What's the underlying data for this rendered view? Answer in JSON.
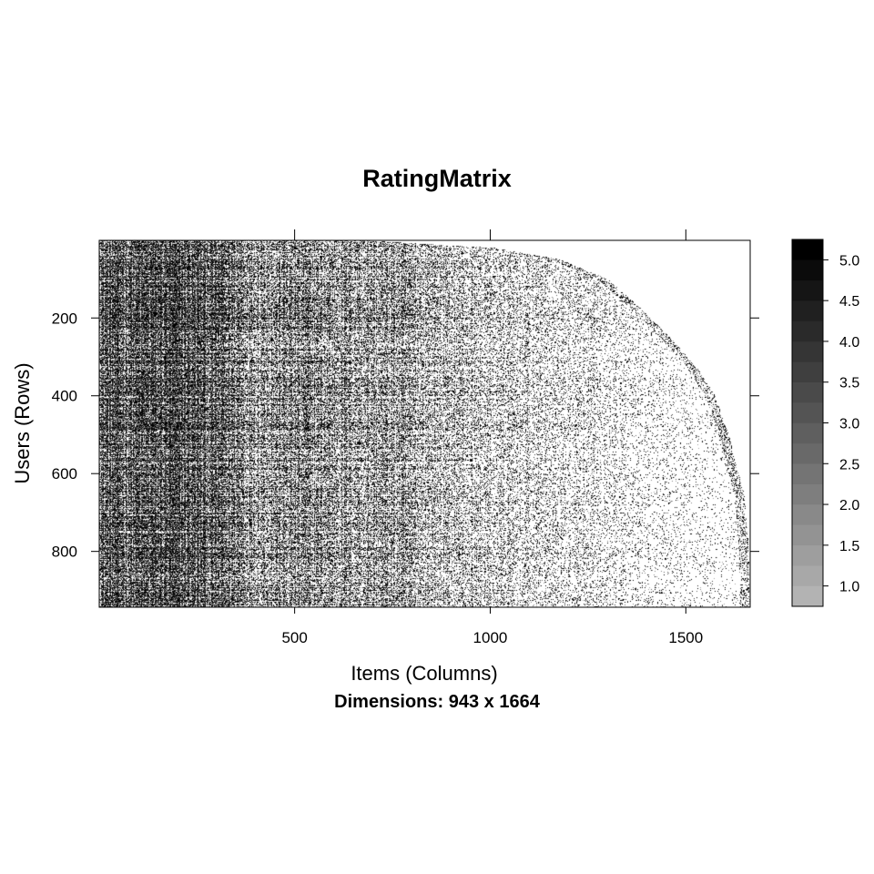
{
  "chart_data": {
    "type": "heatmap",
    "title": "RatingMatrix",
    "xlabel": "Items (Columns)",
    "ylabel": "Users (Rows)",
    "subtitle": "Dimensions: 943 x 1664",
    "n_rows": 943,
    "n_cols": 1664,
    "xlim": [
      0.5,
      1664.5
    ],
    "ylim": [
      0.5,
      943.5
    ],
    "x_ticks": [
      500,
      1000,
      1500
    ],
    "y_ticks": [
      200,
      400,
      600,
      800
    ],
    "y_reversed": true,
    "grid": false,
    "rating_scale": [
      1.0,
      1.5,
      2.0,
      2.5,
      3.0,
      3.5,
      4.0,
      4.5,
      5.0
    ],
    "colorbar_range": [
      0.75,
      5.25
    ],
    "colorbar_ticks": [
      "1.0",
      "1.5",
      "2.0",
      "2.5",
      "3.0",
      "3.5",
      "4.0",
      "4.5",
      "5.0"
    ],
    "colorbar_levels": 18,
    "colorbar_colors": {
      "low": "#b3b3b3",
      "high": "#000000"
    },
    "missing_color": "#ffffff",
    "approx_rated_extent": {
      "rows": [
        1,
        20,
        50,
        100,
        180,
        250,
        330,
        400,
        500,
        600,
        655,
        780,
        943
      ],
      "last_rated_col": [
        680,
        1010,
        1180,
        1300,
        1390,
        1460,
        1530,
        1575,
        1610,
        1635,
        1650,
        1660,
        1664
      ]
    },
    "approx_density_by_col": {
      "cols": [
        1,
        150,
        200,
        300,
        400,
        600,
        750,
        850,
        1000,
        1200,
        1400,
        1664
      ],
      "density": [
        0.85,
        0.9,
        0.95,
        0.8,
        0.6,
        0.55,
        0.5,
        0.4,
        0.3,
        0.2,
        0.12,
        0.05
      ]
    }
  }
}
